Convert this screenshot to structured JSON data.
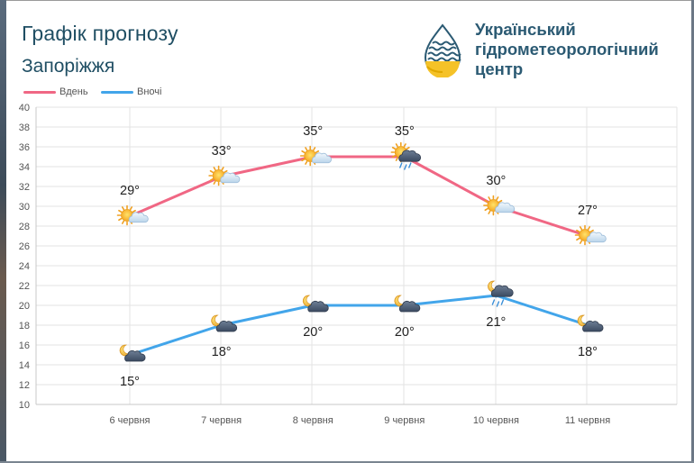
{
  "header": {
    "title": "Графік прогнозу",
    "city": "Запоріжжя"
  },
  "organization": {
    "line1": "Український",
    "line2": "гідрометеорологічний",
    "line3": "центр"
  },
  "legend": {
    "day": "Вдень",
    "night": "Вночі"
  },
  "colors": {
    "day": "#f06784",
    "night": "#42a5ea",
    "title": "#1f4e63",
    "grid": "#e3e3e3"
  },
  "chart_data": {
    "type": "line",
    "categories": [
      "6 червня",
      "7 червня",
      "8 червня",
      "9 червня",
      "10 червня",
      "11 червня"
    ],
    "ylim": [
      10,
      40
    ],
    "yticks": [
      10,
      12,
      14,
      16,
      18,
      20,
      22,
      24,
      26,
      28,
      30,
      32,
      34,
      36,
      38,
      40
    ],
    "grid": true,
    "legend_position": "top-left",
    "series": [
      {
        "name": "Вдень",
        "values": [
          29,
          33,
          35,
          35,
          30,
          27
        ],
        "labels": [
          "29°",
          "33°",
          "35°",
          "35°",
          "30°",
          "27°"
        ],
        "icons": [
          "sun-cloud-icon",
          "sun-cloud-icon",
          "sun-cloud-icon",
          "sun-rain-cloud-icon",
          "sun-cloud-icon",
          "sun-cloud-icon"
        ]
      },
      {
        "name": "Вночі",
        "values": [
          15,
          18,
          20,
          20,
          21,
          18
        ],
        "labels": [
          "15°",
          "18°",
          "20°",
          "20°",
          "21°",
          "18°"
        ],
        "icons": [
          "moon-cloud-icon",
          "moon-cloud-icon",
          "moon-cloud-icon",
          "moon-cloud-icon",
          "moon-rain-cloud-icon",
          "moon-cloud-icon"
        ]
      }
    ]
  }
}
